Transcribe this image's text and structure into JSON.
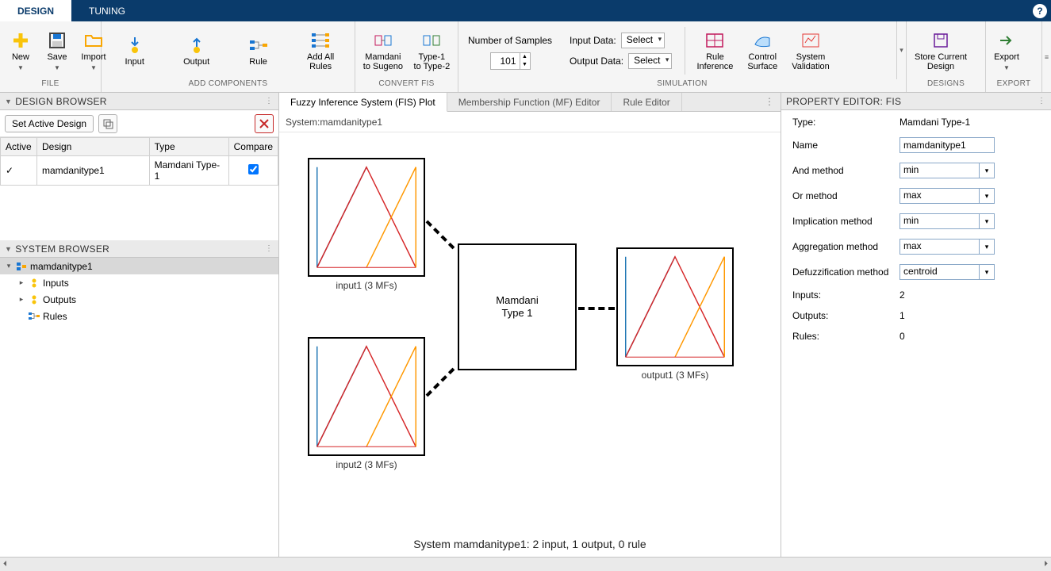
{
  "tabs": {
    "design": "DESIGN",
    "tuning": "TUNING"
  },
  "ribbon": {
    "file": {
      "new": "New",
      "save": "Save",
      "import": "Import",
      "group": "FILE"
    },
    "add": {
      "input": "Input",
      "output": "Output",
      "rule": "Rule",
      "addall": "Add All\nRules",
      "group": "ADD COMPONENTS"
    },
    "convert": {
      "mam": "Mamdani\nto Sugeno",
      "t1": "Type-1\nto Type-2",
      "group": "CONVERT FIS"
    },
    "sim": {
      "nsamples_label": "Number of Samples",
      "nsamples_value": "101",
      "indata_label": "Input Data:",
      "indata_sel": "Select",
      "outdata_label": "Output Data:",
      "outdata_sel": "Select",
      "ruleinf": "Rule\nInference",
      "ctrlsurf": "Control\nSurface",
      "sysval": "System\nValidation",
      "group": "SIMULATION"
    },
    "designs": {
      "store": "Store Current\nDesign",
      "group": "DESIGNS"
    },
    "export": {
      "export": "Export",
      "group": "EXPORT"
    }
  },
  "design_browser": {
    "title": "DESIGN BROWSER",
    "set_active": "Set Active Design",
    "cols": {
      "active": "Active",
      "design": "Design",
      "type": "Type",
      "compare": "Compare"
    },
    "rows": [
      {
        "active": "✓",
        "design": "mamdanitype1",
        "type": "Mamdani Type-1",
        "compare": true
      }
    ]
  },
  "system_browser": {
    "title": "SYSTEM BROWSER",
    "root": "mamdanitype1",
    "inputs": "Inputs",
    "outputs": "Outputs",
    "rules": "Rules"
  },
  "center": {
    "tabs": {
      "fis": "Fuzzy Inference System (FIS) Plot",
      "mf": "Membership Function (MF) Editor",
      "rule": "Rule Editor"
    },
    "sysline_label": "System: ",
    "sysline_name": "mamdanitype1",
    "mf": {
      "input1_label": "input1 (3 MFs)",
      "input2_label": "input2 (3 MFs)",
      "output1_label": "output1 (3 MFs)",
      "center_line1": "Mamdani",
      "center_line2": "Type 1",
      "colors": {
        "line1": "#1f77b4",
        "line2": "#d62728",
        "line3": "#ff9800"
      }
    },
    "caption": "System mamdanitype1: 2 input, 1 output, 0 rule"
  },
  "property_editor": {
    "title": "PROPERTY EDITOR: FIS",
    "rows": {
      "type_k": "Type:",
      "type_v": "Mamdani Type-1",
      "name_k": "Name",
      "name_v": "mamdanitype1",
      "and_k": "And method",
      "and_v": "min",
      "or_k": "Or method",
      "or_v": "max",
      "imp_k": "Implication method",
      "imp_v": "min",
      "agg_k": "Aggregation method",
      "agg_v": "max",
      "defuzz_k": "Defuzzification method",
      "defuzz_v": "centroid",
      "inputs_k": "Inputs:",
      "inputs_v": "2",
      "outputs_k": "Outputs:",
      "outputs_v": "1",
      "rules_k": "Rules:",
      "rules_v": "0"
    }
  },
  "icons": {
    "new_color": "#f9c40a",
    "save_color": "#444",
    "import_color": "#f9a602",
    "ruleinf_color": "#c2185b",
    "ctrlsurf_color": "#1976d2",
    "sysval_color": "#e53935",
    "store_color": "#6a1b9a",
    "export_color": "#2e7d32"
  }
}
